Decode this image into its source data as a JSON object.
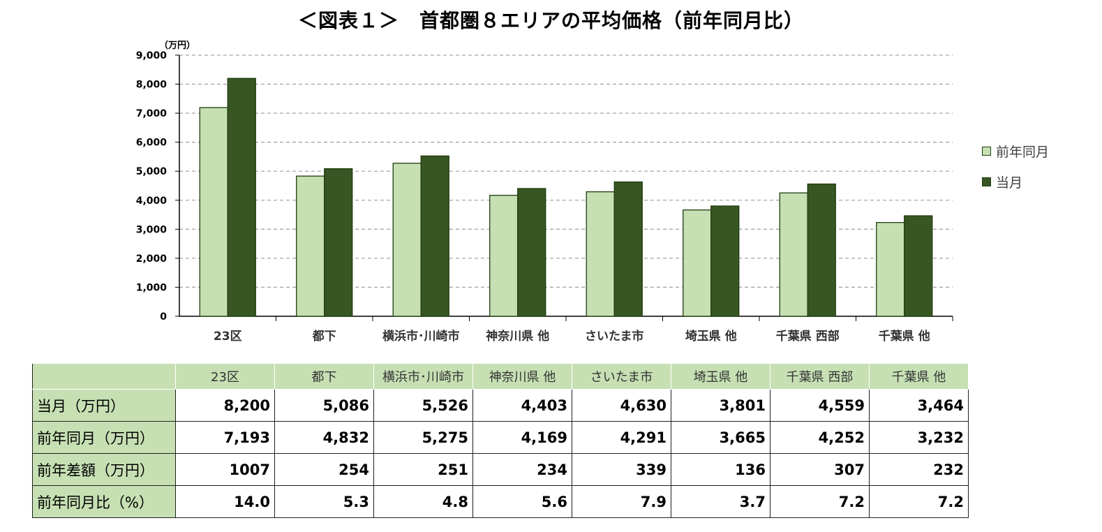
{
  "chart_data": {
    "type": "bar",
    "title": "＜図表１＞　首都圏８エリアの平均価格（前年同月比）",
    "unit_label": "（万円）",
    "categories": [
      "23区",
      "都下",
      "横浜市･川崎市",
      "神奈川県 他",
      "さいたま市",
      "埼玉県 他",
      "千葉県 西部",
      "千葉県 他"
    ],
    "series": [
      {
        "name": "前年同月",
        "values": [
          7193,
          4832,
          5275,
          4169,
          4291,
          3665,
          4252,
          3232
        ]
      },
      {
        "name": "当月",
        "values": [
          8200,
          5086,
          5526,
          4403,
          4630,
          3801,
          4559,
          3464
        ]
      }
    ],
    "ylim": [
      0,
      9000
    ],
    "yticks": [
      "0",
      "1,000",
      "2,000",
      "3,000",
      "4,000",
      "5,000",
      "6,000",
      "7,000",
      "8,000",
      "9,000"
    ],
    "grid": true,
    "legend_position": "right",
    "colors": {
      "prev": "#c6e0b4",
      "curr": "#375623",
      "bar_border": "#1f3d0e"
    }
  },
  "table": {
    "header": [
      "",
      "23区",
      "都下",
      "横浜市･川崎市",
      "神奈川県 他",
      "さいたま市",
      "埼玉県 他",
      "千葉県 西部",
      "千葉県 他"
    ],
    "rows": [
      {
        "label": "当月（万円）",
        "values": [
          "8,200",
          "5,086",
          "5,526",
          "4,403",
          "4,630",
          "3,801",
          "4,559",
          "3,464"
        ]
      },
      {
        "label": "前年同月（万円）",
        "values": [
          "7,193",
          "4,832",
          "5,275",
          "4,169",
          "4,291",
          "3,665",
          "4,252",
          "3,232"
        ]
      },
      {
        "label": "前年差額（万円）",
        "values": [
          "1007",
          "254",
          "251",
          "234",
          "339",
          "136",
          "307",
          "232"
        ]
      },
      {
        "label": "前年同月比（%）",
        "values": [
          "14.0",
          "5.3",
          "4.8",
          "5.6",
          "7.9",
          "3.7",
          "7.2",
          "7.2"
        ]
      }
    ]
  }
}
